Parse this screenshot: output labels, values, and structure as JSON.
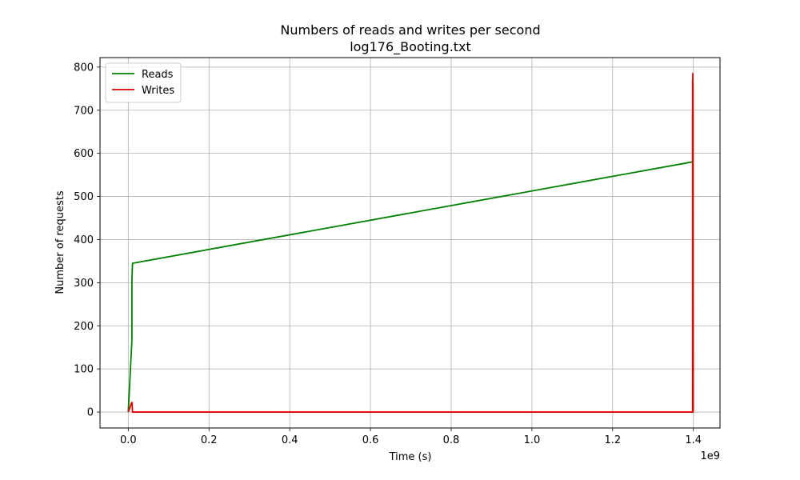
{
  "chart_data": {
    "type": "line",
    "title": "Numbers of reads and writes per second",
    "subtitle": "log176_Booting.txt",
    "xlabel": "Time (s)",
    "ylabel": "Number of requests",
    "x_offset_label": "1e9",
    "xlim": [
      -0.07,
      1.4659
    ],
    "ylim": [
      -37,
      822
    ],
    "x_ticks": [
      0.0,
      0.2,
      0.4,
      0.6,
      0.8,
      1.0,
      1.2,
      1.4
    ],
    "x_tick_labels": [
      "0.0",
      "0.2",
      "0.4",
      "0.6",
      "0.8",
      "1.0",
      "1.2",
      "1.4"
    ],
    "y_ticks": [
      0,
      100,
      200,
      300,
      400,
      500,
      600,
      700,
      800
    ],
    "y_tick_labels": [
      "0",
      "100",
      "200",
      "300",
      "400",
      "500",
      "600",
      "700",
      "800"
    ],
    "grid": true,
    "legend_position": "top-left",
    "series": [
      {
        "name": "Reads",
        "color": "#008000",
        "x": [
          0.0,
          0.009,
          0.009,
          0.0105,
          1.397,
          1.398,
          1.398,
          1.399,
          1.399,
          1.3995
        ],
        "y": [
          0,
          165,
          300,
          345,
          580,
          580,
          690,
          560,
          700,
          0
        ]
      },
      {
        "name": "Writes",
        "color": "#e00000",
        "x": [
          0.0,
          0.0085,
          0.0095,
          0.0105,
          1.3975,
          1.398,
          1.398,
          1.3985,
          1.3985,
          1.399,
          1.399,
          1.3995
        ],
        "y": [
          0,
          22,
          22,
          0,
          0,
          0,
          770,
          0,
          785,
          0,
          760,
          0
        ]
      }
    ]
  }
}
